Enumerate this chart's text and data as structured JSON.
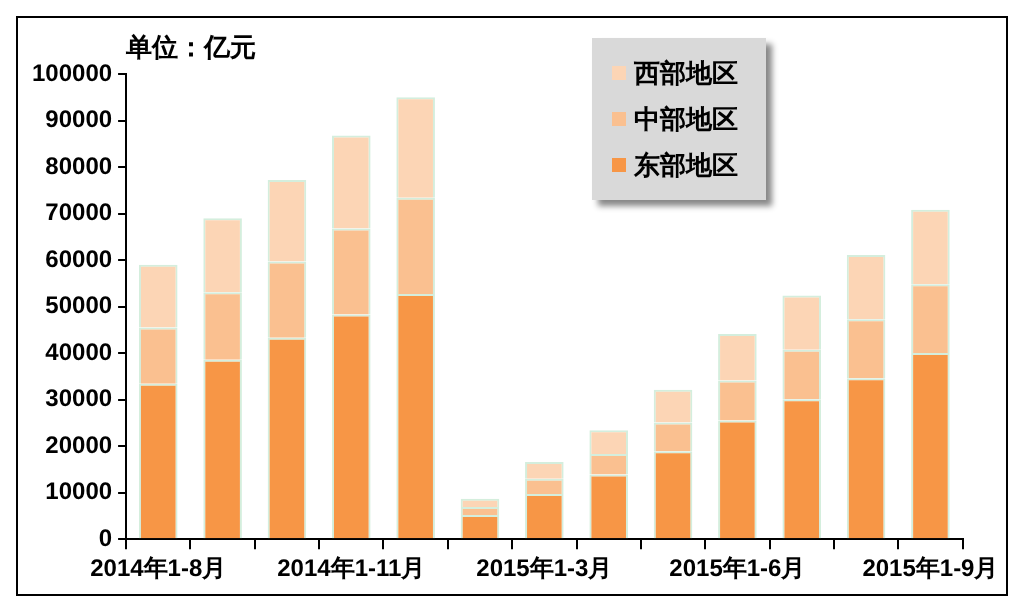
{
  "chart_data": {
    "type": "bar",
    "stacked": true,
    "ylabel": "单位：亿元",
    "categories": [
      "2014年1-8月",
      null,
      null,
      "2014年1-11月",
      null,
      null,
      "2015年1-3月",
      null,
      null,
      "2015年1-6月",
      null,
      null,
      "2015年1-9月"
    ],
    "series": [
      {
        "name": "东部地区",
        "color": "#f79646",
        "values": [
          33400,
          38600,
          43300,
          48300,
          52700,
          5200,
          9700,
          13900,
          18900,
          25500,
          30100,
          34600,
          40000
        ]
      },
      {
        "name": "中部地区",
        "color": "#fac090",
        "values": [
          12100,
          14500,
          16400,
          18500,
          20700,
          1700,
          3300,
          4400,
          6200,
          8600,
          10600,
          12700,
          14800
        ]
      },
      {
        "name": "西部地区",
        "color": "#fcd5b5",
        "values": [
          13500,
          15900,
          17500,
          20000,
          21600,
          1800,
          3600,
          5100,
          7000,
          10000,
          11700,
          13800,
          16000
        ]
      }
    ],
    "ylim": [
      0,
      100000
    ],
    "yticks": [
      0,
      10000,
      20000,
      30000,
      40000,
      50000,
      60000,
      70000,
      80000,
      90000,
      100000
    ],
    "grid": false,
    "legend": "top right"
  }
}
